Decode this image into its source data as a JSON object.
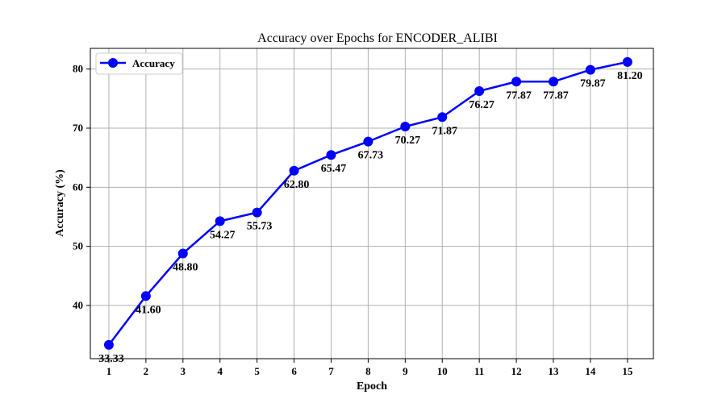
{
  "chart_data": {
    "type": "line",
    "title": "Accuracy over Epochs for ENCODER_ALIBI",
    "xlabel": "Epoch",
    "ylabel": "Accuracy (%)",
    "x": [
      1,
      2,
      3,
      4,
      5,
      6,
      7,
      8,
      9,
      10,
      11,
      12,
      13,
      14,
      15
    ],
    "x_tick_labels": [
      "1",
      "2",
      "3",
      "4",
      "5",
      "6",
      "7",
      "8",
      "9",
      "10",
      "11",
      "12",
      "13",
      "14",
      "15"
    ],
    "y_ticks": [
      40,
      50,
      60,
      70,
      80
    ],
    "y_tick_labels": [
      "40",
      "50",
      "60",
      "70",
      "80"
    ],
    "xlim": [
      0.5,
      15.7
    ],
    "ylim": [
      31.0,
      83.5
    ],
    "grid": true,
    "legend_position": "top-left",
    "series": [
      {
        "name": "Accuracy",
        "color": "#0000ff",
        "marker": "circle",
        "values": [
          33.33,
          41.6,
          48.8,
          54.27,
          55.73,
          62.8,
          65.47,
          67.73,
          70.27,
          71.87,
          76.27,
          77.87,
          77.87,
          79.87,
          81.2
        ],
        "data_labels": [
          "33.33",
          "41.60",
          "48.80",
          "54.27",
          "55.73",
          "62.80",
          "65.47",
          "67.73",
          "70.27",
          "71.87",
          "76.27",
          "77.87",
          "77.87",
          "79.87",
          "81.20"
        ]
      }
    ]
  }
}
